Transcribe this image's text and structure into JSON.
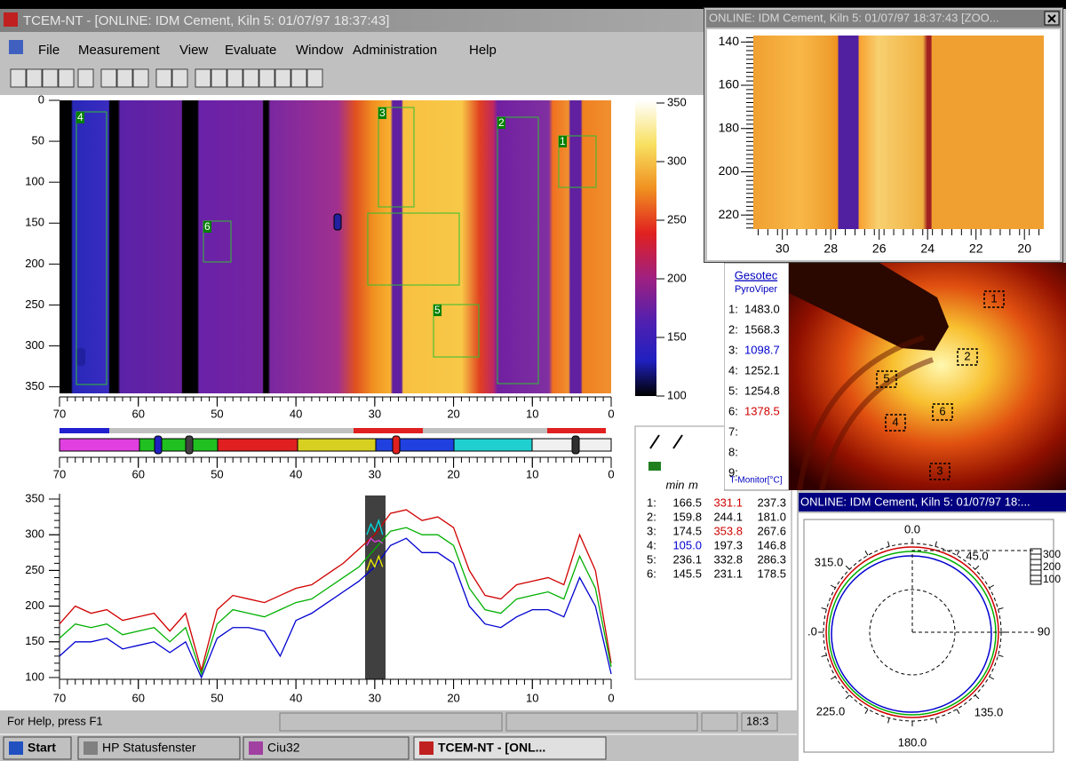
{
  "window": {
    "title": "TCEM-NT - [ONLINE: IDM Cement, Kiln 5: 01/07/97 18:37:43]"
  },
  "menu": [
    "File",
    "Measurement",
    "View",
    "Evaluate",
    "Window",
    "Administration",
    "Help"
  ],
  "thermal": {
    "rois": [
      "1",
      "2",
      "3",
      "4",
      "5",
      "6"
    ],
    "ylim": [
      0,
      358
    ],
    "yticks": [
      0,
      50,
      100,
      150,
      200,
      250,
      300,
      350
    ],
    "xlim": [
      70,
      0
    ],
    "xticks": [
      70,
      60,
      50,
      40,
      30,
      20,
      10,
      0
    ],
    "colorbar": {
      "ylim": [
        100,
        350
      ],
      "ticks": [
        100,
        150,
        200,
        250,
        300,
        350
      ]
    }
  },
  "strip": {
    "xlim": [
      70,
      0
    ],
    "xticks": [
      70,
      60,
      50,
      40,
      30,
      20,
      10,
      0
    ]
  },
  "profile": {
    "type": "line",
    "xlim": [
      70,
      0
    ],
    "xticks": [
      70,
      60,
      50,
      40,
      30,
      20,
      10,
      0
    ],
    "ylim": [
      100,
      350
    ],
    "yticks": [
      100,
      150,
      200,
      250,
      300,
      350
    ],
    "x": [
      70,
      68,
      66,
      64,
      62,
      60,
      58,
      56,
      54,
      52,
      50,
      48,
      46,
      44,
      42,
      40,
      38,
      36,
      34,
      32,
      30,
      28,
      26,
      24,
      22,
      20,
      18,
      16,
      14,
      12,
      10,
      8,
      6,
      4,
      2,
      0
    ],
    "series": [
      {
        "color": "#d00000",
        "values": [
          175,
          200,
          190,
          195,
          180,
          185,
          190,
          165,
          190,
          110,
          195,
          215,
          210,
          205,
          215,
          225,
          230,
          245,
          260,
          280,
          300,
          330,
          335,
          320,
          325,
          310,
          250,
          215,
          210,
          230,
          235,
          240,
          230,
          300,
          250,
          120
        ]
      },
      {
        "color": "#00b000",
        "values": [
          155,
          175,
          170,
          175,
          160,
          165,
          170,
          150,
          170,
          105,
          175,
          195,
          190,
          185,
          195,
          205,
          210,
          225,
          240,
          255,
          280,
          305,
          310,
          300,
          300,
          285,
          225,
          195,
          190,
          210,
          215,
          220,
          210,
          270,
          225,
          115
        ]
      },
      {
        "color": "#0000d0",
        "values": [
          130,
          150,
          150,
          155,
          140,
          145,
          150,
          135,
          150,
          100,
          155,
          170,
          170,
          165,
          130,
          180,
          190,
          205,
          220,
          235,
          255,
          285,
          295,
          275,
          275,
          260,
          200,
          175,
          170,
          185,
          195,
          195,
          185,
          240,
          200,
          105
        ]
      }
    ],
    "highlight": {
      "x": [
        31,
        30.5,
        30,
        29.5,
        29
      ],
      "series": [
        {
          "color": "#00e0e0",
          "values": [
            300,
            315,
            305,
            320,
            300
          ]
        },
        {
          "color": "#e040e0",
          "values": [
            285,
            295,
            290,
            292,
            288
          ]
        },
        {
          "color": "#f0f000",
          "values": [
            250,
            265,
            255,
            270,
            255
          ]
        }
      ]
    }
  },
  "stats": {
    "headers": [
      "min",
      "m"
    ],
    "rows": [
      [
        "1:",
        "166.5",
        "331.1",
        "237.3"
      ],
      [
        "2:",
        "159.8",
        "244.1",
        "181.0"
      ],
      [
        "3:",
        "174.5",
        "353.8",
        "267.6"
      ],
      [
        "4:",
        "105.0",
        "197.3",
        "146.8"
      ],
      [
        "5:",
        "236.1",
        "332.8",
        "286.3"
      ],
      [
        "6:",
        "145.5",
        "231.1",
        "178.5"
      ]
    ]
  },
  "zoom": {
    "title": "ONLINE: IDM Cement, Kiln 5: 01/07/97 18:37:43 [ZOO...",
    "ylim": [
      137,
      226.5
    ],
    "yticks": [
      140,
      160,
      180,
      200,
      220
    ],
    "xlim": [
      31.2,
      19.2
    ],
    "xticks": [
      30,
      28,
      26,
      24,
      22,
      20
    ]
  },
  "pyro": {
    "brand": "Gesotec",
    "product": "PyroViper",
    "rows": [
      {
        "label": "1:",
        "value": "1483.0"
      },
      {
        "label": "2:",
        "value": "1568.3"
      },
      {
        "label": "3:",
        "value": "1098.7"
      },
      {
        "label": "4:",
        "value": "1252.1"
      },
      {
        "label": "5:",
        "value": "1254.8"
      },
      {
        "label": "6:",
        "value": "1378.5"
      },
      {
        "label": "7:"
      },
      {
        "label": "8:"
      },
      {
        "label": "9:"
      }
    ],
    "footer": "T-Monitor[°C]",
    "boxes": [
      "1",
      "2",
      "3",
      "4",
      "5",
      "6"
    ]
  },
  "polar": {
    "title": "ONLINE: IDM Cement, Kiln 5: 01/07/97 18:...",
    "angles": [
      "0.0",
      "45.0",
      "90",
      "135.0",
      "180.0",
      "225.0",
      ".0",
      "315.0"
    ],
    "scale": [
      "300",
      "200",
      "100"
    ]
  },
  "statusbar": {
    "help": "For Help, press F1",
    "time": "18:3"
  },
  "taskbar": [
    "Start",
    "HP Statusfenster",
    "Ciu32",
    "TCEM-NT - [ONL..."
  ]
}
